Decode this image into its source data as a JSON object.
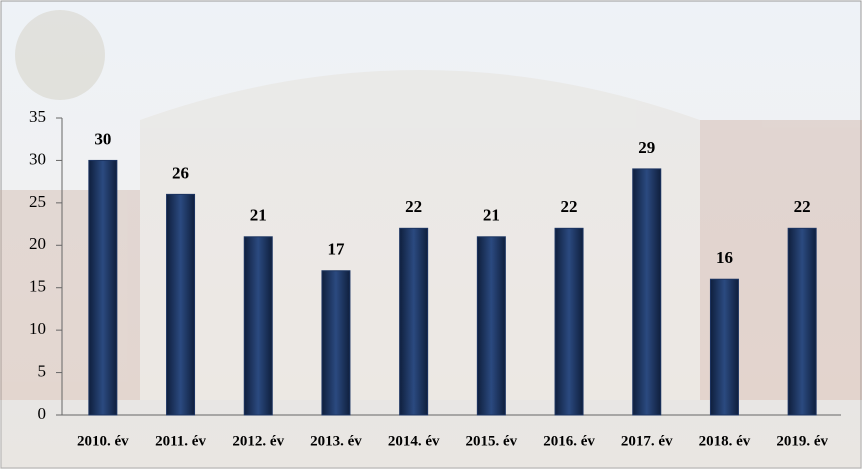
{
  "chart_data": {
    "type": "bar",
    "categories": [
      "2010. év",
      "2011. év",
      "2012. év",
      "2013. év",
      "2014. év",
      "2015. év",
      "2016. év",
      "2017. év",
      "2018. év",
      "2019. év"
    ],
    "values": [
      30,
      26,
      21,
      17,
      22,
      21,
      22,
      29,
      16,
      22
    ],
    "color": "#1c3461",
    "ylim": [
      0,
      35
    ],
    "yticks": [
      0,
      5,
      10,
      15,
      20,
      25,
      30,
      35
    ]
  }
}
